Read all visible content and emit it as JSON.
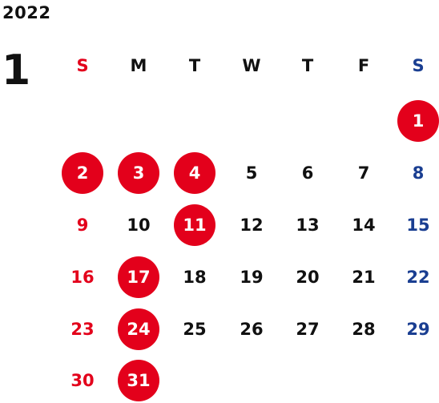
{
  "calendar": {
    "year": "2022",
    "month": "1",
    "weekdays": [
      "S",
      "M",
      "T",
      "W",
      "T",
      "F",
      "S"
    ],
    "weeks": [
      [
        null,
        null,
        null,
        null,
        null,
        null,
        "1"
      ],
      [
        "2",
        "3",
        "4",
        "5",
        "6",
        "7",
        "8"
      ],
      [
        "9",
        "10",
        "11",
        "12",
        "13",
        "14",
        "15"
      ],
      [
        "16",
        "17",
        "18",
        "19",
        "20",
        "21",
        "22"
      ],
      [
        "23",
        "24",
        "25",
        "26",
        "27",
        "28",
        "29"
      ],
      [
        "30",
        "31",
        null,
        null,
        null,
        null,
        null
      ]
    ],
    "holidays": [
      "1",
      "2",
      "3",
      "4",
      "11",
      "17",
      "24",
      "31"
    ]
  },
  "colors": {
    "sunday": "#e3001b",
    "saturday": "#1a3e91",
    "weekday": "#111111",
    "holiday_fill": "#e3001b",
    "holiday_text": "#ffffff"
  }
}
